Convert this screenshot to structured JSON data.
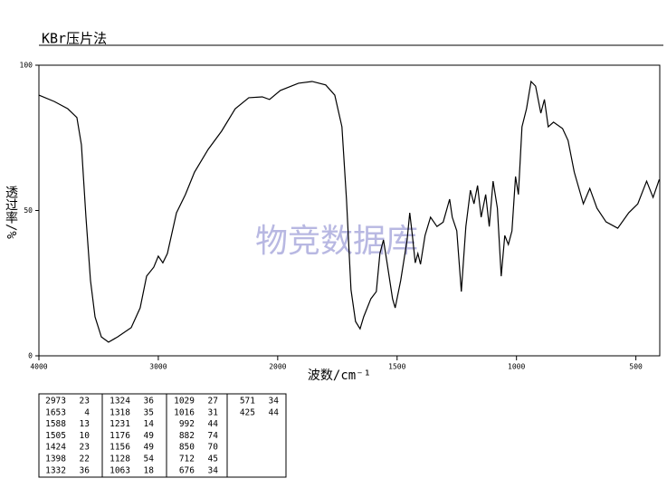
{
  "chart_data": {
    "type": "line",
    "title": "KBr压片法",
    "xlabel": "波数/cm⁻¹",
    "ylabel": "透过率/%",
    "watermark": "物竞数据库",
    "color": "#000000",
    "xlim": [
      4000,
      400
    ],
    "x_scale_break": 2000,
    "x_scale_ratio": 2,
    "xticks": [
      4000,
      3000,
      2000,
      1500,
      1000,
      500
    ],
    "ylim": [
      0,
      100
    ],
    "yticks": [
      0,
      50,
      100
    ],
    "x": [
      4000,
      3871,
      3758,
      3682,
      3644,
      3606,
      3568,
      3530,
      3477,
      3417,
      3341,
      3227,
      3152,
      3098,
      3038,
      3000,
      2962,
      2924,
      2848,
      2773,
      2697,
      2583,
      2470,
      2356,
      2242,
      2129,
      2068,
      1989,
      1913,
      1856,
      1799,
      1761,
      1731,
      1712,
      1693,
      1674,
      1655,
      1640,
      1610,
      1587,
      1572,
      1557,
      1542,
      1519,
      1508,
      1485,
      1458,
      1447,
      1436,
      1424,
      1413,
      1402,
      1383,
      1360,
      1333,
      1307,
      1280,
      1269,
      1250,
      1231,
      1212,
      1193,
      1178,
      1163,
      1148,
      1129,
      1114,
      1098,
      1080,
      1064,
      1049,
      1034,
      1019,
      1004,
      992,
      977,
      958,
      939,
      920,
      898,
      883,
      867,
      845,
      807,
      784,
      758,
      720,
      693,
      663,
      625,
      576,
      530,
      492,
      455,
      428,
      402
    ],
    "y": [
      89.7,
      87.5,
      85,
      82,
      72.6,
      47.7,
      25.9,
      13.4,
      6.5,
      4.7,
      6.5,
      9.7,
      16.5,
      27.4,
      30.5,
      34.3,
      32,
      35.2,
      49.2,
      55.5,
      63.2,
      71,
      77.3,
      85,
      88.8,
      89.1,
      88.2,
      91.3,
      93.8,
      94.4,
      93.2,
      89.7,
      78.8,
      53.9,
      22.7,
      11.8,
      9.3,
      13.4,
      19.6,
      22.1,
      35.2,
      39.9,
      32,
      19.6,
      16.5,
      25.9,
      39.9,
      49.2,
      41.4,
      32,
      35.2,
      31.5,
      41.4,
      47.7,
      44.5,
      46,
      53.9,
      47.7,
      43,
      22.1,
      44.5,
      57,
      52.3,
      58.6,
      47.7,
      55.5,
      44.5,
      60.1,
      50.8,
      27.4,
      41.4,
      38.3,
      43,
      61.7,
      55.5,
      78.8,
      85,
      94.4,
      92.8,
      83.5,
      88.2,
      78.8,
      80.4,
      78.2,
      74.1,
      63.2,
      52.3,
      57.6,
      50.8,
      46.1,
      43.9,
      49.2,
      52.3,
      60.1,
      54.5,
      60.7
    ]
  },
  "peak_table": [
    [
      [
        2973,
        23
      ],
      [
        1653,
        4
      ],
      [
        1588,
        13
      ],
      [
        1505,
        10
      ],
      [
        1424,
        23
      ],
      [
        1398,
        22
      ],
      [
        1332,
        36
      ]
    ],
    [
      [
        1324,
        36
      ],
      [
        1318,
        35
      ],
      [
        1231,
        14
      ],
      [
        1176,
        49
      ],
      [
        1156,
        49
      ],
      [
        1128,
        54
      ],
      [
        1063,
        18
      ]
    ],
    [
      [
        1029,
        27
      ],
      [
        1016,
        31
      ],
      [
        992,
        44
      ],
      [
        882,
        74
      ],
      [
        850,
        70
      ],
      [
        712,
        45
      ],
      [
        676,
        34
      ]
    ],
    [
      [
        571,
        34
      ],
      [
        425,
        44
      ]
    ]
  ]
}
